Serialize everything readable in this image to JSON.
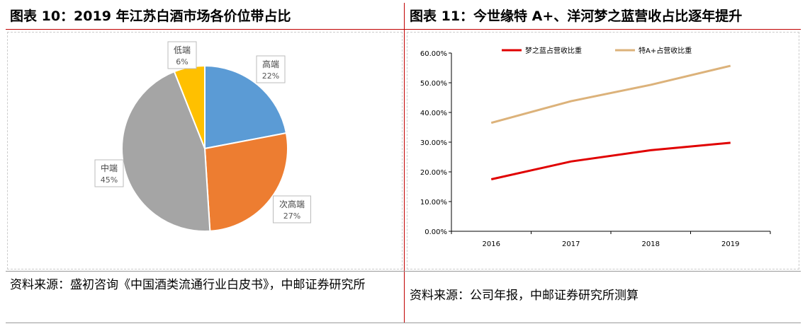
{
  "left": {
    "title": "图表 10：2019 年江苏白酒市场各价位带占比",
    "source": "资料来源：盛初咨询《中国酒类流通行业白皮书》，中邮证券研究所"
  },
  "right": {
    "title": "图表 11：今世缘特 A+、洋河梦之蓝营收占比逐年提升",
    "source": "资料来源：公司年报，中邮证券研究所测算"
  },
  "chart_data": [
    {
      "type": "pie",
      "title": "2019年江苏白酒市场各价位带占比",
      "slices": [
        {
          "label": "高端",
          "value": 22,
          "pct": "22%",
          "color": "#5b9bd5"
        },
        {
          "label": "次高端",
          "value": 27,
          "pct": "27%",
          "color": "#ed7d31"
        },
        {
          "label": "中端",
          "value": 45,
          "pct": "45%",
          "color": "#a5a5a5"
        },
        {
          "label": "低端",
          "value": 6,
          "pct": "6%",
          "color": "#ffc000"
        }
      ]
    },
    {
      "type": "line",
      "categories": [
        "2016",
        "2017",
        "2018",
        "2019"
      ],
      "ylim": [
        0,
        60
      ],
      "yticks": [
        "0.00%",
        "10.00%",
        "20.00%",
        "30.00%",
        "40.00%",
        "50.00%",
        "60.00%"
      ],
      "legend": "top",
      "series": [
        {
          "name": "梦之蓝占营收比重",
          "values": [
            17.5,
            23.5,
            27.3,
            29.8
          ],
          "color": "#e00000"
        },
        {
          "name": "特A+占营收比重",
          "values": [
            36.5,
            43.8,
            49.3,
            55.7
          ],
          "color": "#dcb27a"
        }
      ]
    }
  ]
}
